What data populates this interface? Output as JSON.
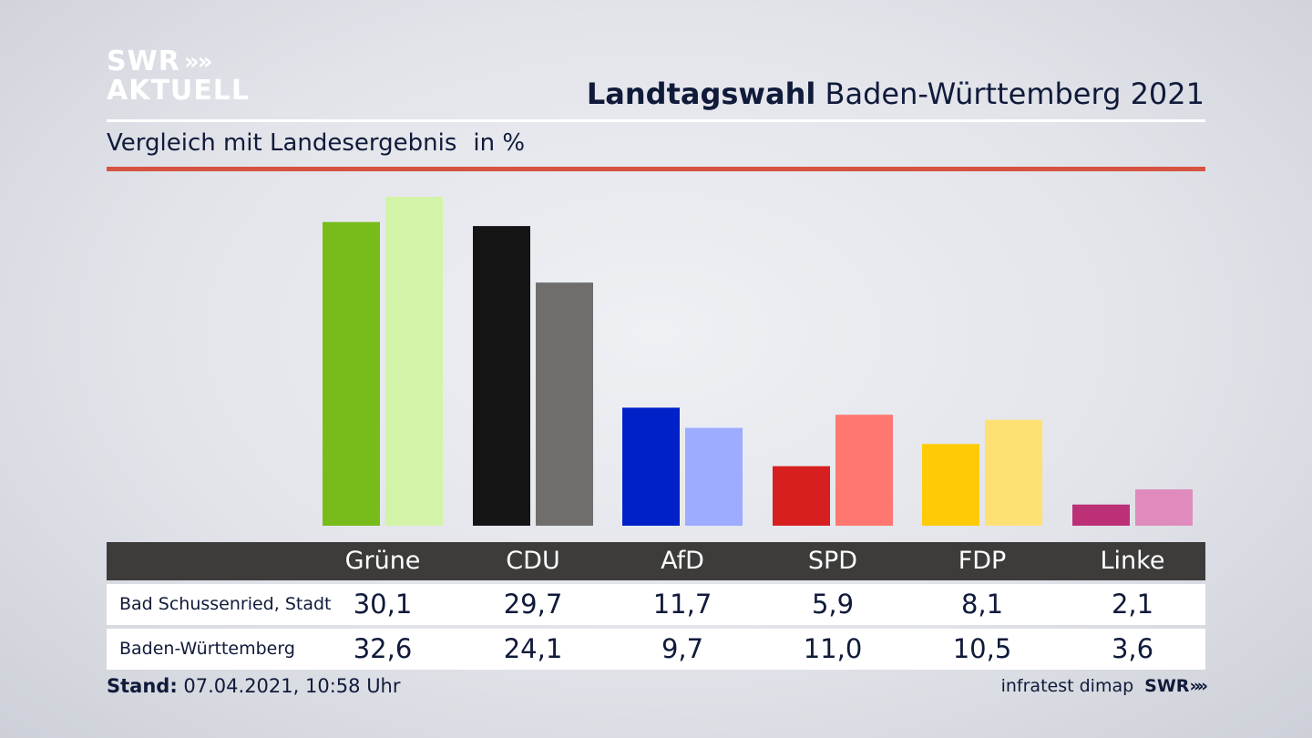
{
  "brand": {
    "logo_line1": "SWR",
    "logo_line2": "AKTUELL",
    "chevrons": "»"
  },
  "header": {
    "title_bold": "Landtagswahl",
    "title_rest": "Baden-Württemberg 2021"
  },
  "subtitle": {
    "text": "Vergleich mit Landesergebnis",
    "unit": "in %"
  },
  "colors": {
    "accent_rule": "#d65341",
    "table_header": "#3d3c3b",
    "primary": [
      "#78bc1b",
      "#141414",
      "#0021c8",
      "#d71f1f",
      "#ffcb06",
      "#bc3077"
    ],
    "secondary": [
      "#d3f4a8",
      "#6f6e6d",
      "#9eacff",
      "#ff7770",
      "#ffe073",
      "#df8bbd"
    ]
  },
  "chart_data": {
    "type": "bar",
    "categories": [
      "Grüne",
      "CDU",
      "AfD",
      "SPD",
      "FDP",
      "Linke"
    ],
    "series": [
      {
        "name": "Bad Schussenried, Stadt",
        "values": [
          30.1,
          29.7,
          11.7,
          5.9,
          8.1,
          2.1
        ],
        "labels": [
          "30,1",
          "29,7",
          "11,7",
          "5,9",
          "8,1",
          "2,1"
        ]
      },
      {
        "name": "Baden-Württemberg",
        "values": [
          32.6,
          24.1,
          9.7,
          11.0,
          10.5,
          3.6
        ],
        "labels": [
          "32,6",
          "24,1",
          "9,7",
          "11,0",
          "10,5",
          "3,6"
        ]
      }
    ],
    "ylim": [
      0,
      33
    ]
  },
  "footer": {
    "stand_label": "Stand:",
    "stand_value": "07.04.2021, 10:58 Uhr",
    "source": "infratest dimap",
    "source_brand": "SWR"
  }
}
